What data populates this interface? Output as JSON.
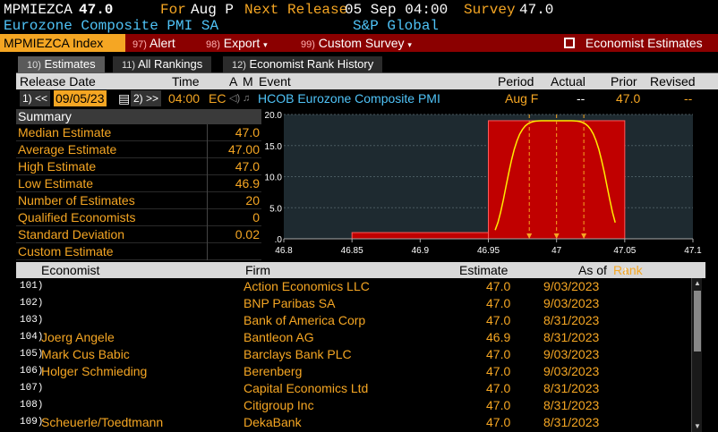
{
  "header": {
    "ticker": "MPMIEZCA",
    "value": "47.0",
    "for_label": "For",
    "period": "Aug P",
    "next_release_label": "Next Release",
    "next_release": "05 Sep 04:00",
    "survey_label": "Survey",
    "survey": "47.0",
    "description": "Eurozone Composite PMI SA",
    "source": "S&P Global"
  },
  "toolbar": {
    "index_label": "MPMIEZCA Index",
    "alert_num": "97)",
    "alert_label": "Alert",
    "export_num": "98)",
    "export_label": "Export",
    "custom_num": "99)",
    "custom_label": "Custom Survey",
    "economist_estimates": "Economist Estimates"
  },
  "tabs": [
    {
      "num": "10)",
      "label": "Estimates"
    },
    {
      "num": "11)",
      "label": "All Rankings"
    },
    {
      "num": "12)",
      "label": "Economist Rank History"
    }
  ],
  "grid": {
    "headers": {
      "release_date": "Release Date",
      "time": "Time",
      "a": "A",
      "m": "M",
      "event": "Event",
      "period": "Period",
      "actual": "Actual",
      "prior": "Prior",
      "revised": "Revised"
    },
    "row": {
      "prev": "1) <<",
      "date": "09/05/23",
      "next": "2) >>",
      "time": "04:00",
      "country": "EC",
      "event": "HCOB Eurozone Composite PMI",
      "period": "Aug F",
      "actual": "--",
      "prior": "47.0",
      "revised": "--"
    }
  },
  "summary": {
    "title": "Summary",
    "rows": [
      {
        "label": "Median Estimate",
        "value": "47.0"
      },
      {
        "label": "Average Estimate",
        "value": "47.00"
      },
      {
        "label": "High Estimate",
        "value": "47.0"
      },
      {
        "label": "Low Estimate",
        "value": "46.9"
      },
      {
        "label": "Number of Estimates",
        "value": "20"
      },
      {
        "label": "Qualified Economists",
        "value": "0"
      },
      {
        "label": "Standard Deviation",
        "value": "0.02"
      },
      {
        "label": "Custom Estimate",
        "value": ""
      }
    ]
  },
  "chart_data": {
    "type": "bar",
    "x_ticks": [
      "46.8",
      "46.85",
      "46.9",
      "46.95",
      "47",
      "47.05",
      "47.1"
    ],
    "y_ticks": [
      "20.0",
      "15.0",
      "10.0",
      "5.0",
      ".0"
    ],
    "xlim": [
      46.8,
      47.1
    ],
    "ylim": [
      0,
      20
    ],
    "bins": [
      {
        "x0": 46.85,
        "x1": 46.95,
        "count": 1
      },
      {
        "x0": 46.95,
        "x1": 47.05,
        "count": 19
      }
    ],
    "distribution_peak": 19,
    "markers": [
      46.98,
      47.0,
      47.02
    ],
    "colors": {
      "bars": "#c00000",
      "curve": "#ffee00",
      "plot_bg": "#1e2a30",
      "marker": "#f5a623"
    }
  },
  "economists": {
    "headers": {
      "economist": "Economist",
      "firm": "Firm",
      "estimate": "Estimate",
      "as_of": "As of",
      "rank": "Rank"
    },
    "rows": [
      {
        "rank": "101)",
        "name": "",
        "firm": "Action Economics LLC",
        "estimate": "47.0",
        "as_of": "9/03/2023"
      },
      {
        "rank": "102)",
        "name": "",
        "firm": "BNP Paribas SA",
        "estimate": "47.0",
        "as_of": "9/03/2023"
      },
      {
        "rank": "103)",
        "name": "",
        "firm": "Bank of America Corp",
        "estimate": "47.0",
        "as_of": "8/31/2023"
      },
      {
        "rank": "104)",
        "name": "Joerg Angele",
        "firm": "Bantleon AG",
        "estimate": "46.9",
        "as_of": "8/31/2023"
      },
      {
        "rank": "105)",
        "name": "Mark Cus Babic",
        "firm": "Barclays Bank PLC",
        "estimate": "47.0",
        "as_of": "9/03/2023"
      },
      {
        "rank": "106)",
        "name": "Holger Schmieding",
        "firm": "Berenberg",
        "estimate": "47.0",
        "as_of": "9/03/2023"
      },
      {
        "rank": "107)",
        "name": "",
        "firm": "Capital Economics Ltd",
        "estimate": "47.0",
        "as_of": "8/31/2023"
      },
      {
        "rank": "108)",
        "name": "",
        "firm": "Citigroup Inc",
        "estimate": "47.0",
        "as_of": "8/31/2023"
      },
      {
        "rank": "109)",
        "name": "Scheuerle/Toedtmann",
        "firm": "DekaBank",
        "estimate": "47.0",
        "as_of": "8/31/2023"
      }
    ]
  }
}
